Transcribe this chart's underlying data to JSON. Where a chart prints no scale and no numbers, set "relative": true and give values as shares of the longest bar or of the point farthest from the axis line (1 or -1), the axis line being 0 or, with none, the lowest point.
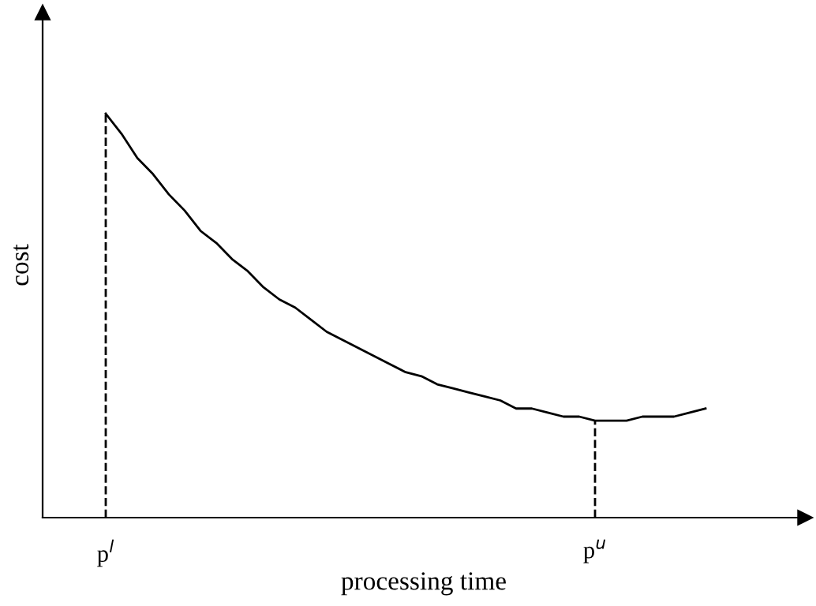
{
  "chart_data": {
    "type": "line",
    "relative": true,
    "xlabel": "processing time",
    "ylabel": "cost",
    "categories": [
      "p$^{l}$",
      null,
      null,
      null,
      null,
      null,
      null,
      null,
      null,
      null,
      null,
      null,
      null,
      null,
      null,
      null,
      null,
      null,
      null,
      null,
      null,
      null,
      null,
      null,
      null,
      null,
      null,
      null,
      null,
      null,
      null,
      "p$^{u}$",
      null,
      null,
      null,
      null,
      null,
      null,
      null
    ],
    "series": [
      {
        "color": "#000000",
        "values": [
          1.0,
          0.95,
          0.89,
          0.85,
          0.8,
          0.76,
          0.71,
          0.68,
          0.64,
          0.61,
          0.57,
          0.54,
          0.52,
          0.49,
          0.46,
          0.44,
          0.42,
          0.4,
          0.38,
          0.36,
          0.35,
          0.33,
          0.32,
          0.31,
          0.3,
          0.29,
          0.27,
          0.27,
          0.26,
          0.25,
          0.25,
          0.24,
          0.24,
          0.24,
          0.25,
          0.25,
          0.25,
          0.26,
          0.27
        ]
      }
    ],
    "ref_lines": [
      {
        "axis": "x",
        "value": "p$^{l}$",
        "line_style": "dashed",
        "color": "#000000"
      },
      {
        "axis": "x",
        "value": "p$^{u}$",
        "line_style": "dashed",
        "color": "#000000"
      }
    ],
    "marker": "none",
    "line_style": "solid",
    "grid": false,
    "legend": false
  }
}
